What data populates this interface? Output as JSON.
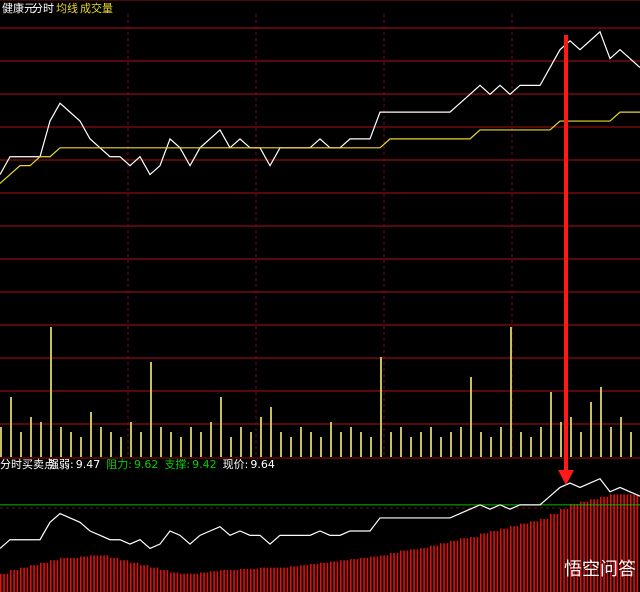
{
  "chart_data": [
    {
      "type": "line",
      "title": "健康元",
      "ylim": [
        9.2,
        9.7
      ],
      "series": [
        {
          "name": "分时",
          "color": "#ffffff",
          "values": [
            9.52,
            9.54,
            9.54,
            9.54,
            9.54,
            9.58,
            9.6,
            9.59,
            9.58,
            9.56,
            9.55,
            9.54,
            9.54,
            9.53,
            9.54,
            9.52,
            9.53,
            9.56,
            9.55,
            9.53,
            9.55,
            9.56,
            9.57,
            9.55,
            9.56,
            9.55,
            9.55,
            9.53,
            9.55,
            9.55,
            9.55,
            9.55,
            9.56,
            9.55,
            9.55,
            9.56,
            9.56,
            9.56,
            9.59,
            9.59,
            9.59,
            9.59,
            9.59,
            9.59,
            9.59,
            9.59,
            9.6,
            9.61,
            9.62,
            9.61,
            9.62,
            9.61,
            9.62,
            9.62,
            9.62,
            9.64,
            9.66,
            9.67,
            9.66,
            9.67,
            9.68,
            9.65,
            9.66,
            9.65,
            9.64
          ]
        },
        {
          "name": "均线",
          "color": "#e8d830",
          "values": [
            9.51,
            9.52,
            9.53,
            9.53,
            9.54,
            9.54,
            9.55,
            9.55,
            9.55,
            9.55,
            9.55,
            9.55,
            9.55,
            9.55,
            9.55,
            9.55,
            9.55,
            9.55,
            9.55,
            9.55,
            9.55,
            9.55,
            9.55,
            9.55,
            9.55,
            9.55,
            9.55,
            9.55,
            9.55,
            9.55,
            9.55,
            9.55,
            9.55,
            9.55,
            9.55,
            9.55,
            9.55,
            9.55,
            9.55,
            9.56,
            9.56,
            9.56,
            9.56,
            9.56,
            9.56,
            9.56,
            9.56,
            9.56,
            9.57,
            9.57,
            9.57,
            9.57,
            9.57,
            9.57,
            9.57,
            9.57,
            9.58,
            9.58,
            9.58,
            9.58,
            9.58,
            9.58,
            9.59,
            9.59,
            9.59
          ]
        }
      ]
    },
    {
      "type": "bar",
      "title": "成交量",
      "color": "#c8c060",
      "ylim": [
        0,
        140
      ],
      "values": [
        30,
        60,
        25,
        40,
        35,
        130,
        30,
        25,
        20,
        45,
        30,
        25,
        20,
        35,
        25,
        95,
        30,
        25,
        20,
        30,
        25,
        35,
        60,
        20,
        30,
        25,
        40,
        50,
        25,
        20,
        30,
        25,
        20,
        35,
        25,
        30,
        25,
        20,
        100,
        25,
        30,
        20,
        25,
        30,
        20,
        25,
        30,
        80,
        25,
        20,
        30,
        130,
        25,
        20,
        30,
        65,
        35,
        40,
        25,
        55,
        70,
        30,
        40,
        25,
        35
      ]
    },
    {
      "type": "line",
      "title": "分时买卖点",
      "ylim": [
        9.42,
        9.7
      ],
      "indicators": [
        {
          "label": "强弱:",
          "value": 9.47,
          "color": "#ffffff"
        },
        {
          "label": "阻力:",
          "value": 9.62,
          "color": "#00d000"
        },
        {
          "label": "支撑:",
          "value": 9.42,
          "color": "#00d000"
        },
        {
          "label": "现价:",
          "value": 9.64,
          "color": "#ffffff"
        }
      ],
      "series": [
        {
          "color": "#ffffff",
          "values": [
            9.52,
            9.54,
            9.54,
            9.54,
            9.54,
            9.58,
            9.6,
            9.59,
            9.58,
            9.56,
            9.55,
            9.54,
            9.54,
            9.53,
            9.54,
            9.52,
            9.53,
            9.56,
            9.55,
            9.53,
            9.55,
            9.56,
            9.57,
            9.55,
            9.56,
            9.55,
            9.55,
            9.53,
            9.55,
            9.55,
            9.55,
            9.55,
            9.56,
            9.55,
            9.55,
            9.56,
            9.56,
            9.56,
            9.59,
            9.59,
            9.59,
            9.59,
            9.59,
            9.59,
            9.59,
            9.59,
            9.6,
            9.61,
            9.62,
            9.61,
            9.62,
            9.61,
            9.62,
            9.62,
            9.62,
            9.64,
            9.66,
            9.67,
            9.66,
            9.67,
            9.68,
            9.65,
            9.66,
            9.65,
            9.64
          ]
        }
      ],
      "bars": {
        "color": "#e01010",
        "ylim": [
          0,
          100
        ],
        "values": [
          15,
          18,
          20,
          22,
          24,
          26,
          28,
          28,
          29,
          30,
          30,
          28,
          26,
          24,
          22,
          20,
          18,
          16,
          15,
          15,
          16,
          17,
          18,
          18,
          19,
          19,
          20,
          20,
          20,
          21,
          22,
          23,
          24,
          25,
          26,
          27,
          28,
          29,
          30,
          32,
          34,
          35,
          36,
          38,
          40,
          42,
          44,
          45,
          48,
          50,
          52,
          54,
          56,
          58,
          60,
          64,
          68,
          72,
          74,
          76,
          78,
          80,
          80,
          80,
          80
        ]
      },
      "watermark": "悟空问答"
    }
  ]
}
